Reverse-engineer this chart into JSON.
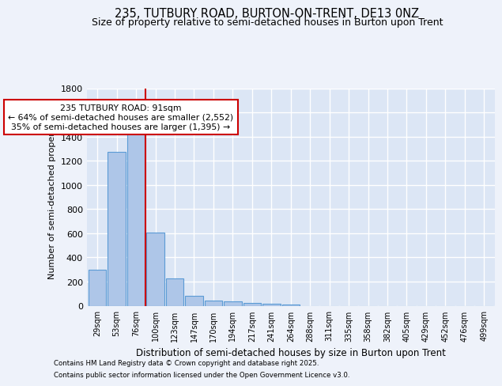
{
  "title": "235, TUTBURY ROAD, BURTON-ON-TRENT, DE13 0NZ",
  "subtitle": "Size of property relative to semi-detached houses in Burton upon Trent",
  "xlabel": "Distribution of semi-detached houses by size in Burton upon Trent",
  "ylabel": "Number of semi-detached properties",
  "footer_line1": "Contains HM Land Registry data © Crown copyright and database right 2025.",
  "footer_line2": "Contains public sector information licensed under the Open Government Licence v3.0.",
  "categories": [
    "29sqm",
    "53sqm",
    "76sqm",
    "100sqm",
    "123sqm",
    "147sqm",
    "170sqm",
    "194sqm",
    "217sqm",
    "241sqm",
    "264sqm",
    "288sqm",
    "311sqm",
    "335sqm",
    "358sqm",
    "382sqm",
    "405sqm",
    "429sqm",
    "452sqm",
    "476sqm",
    "499sqm"
  ],
  "values": [
    300,
    1270,
    1450,
    605,
    225,
    80,
    40,
    35,
    25,
    15,
    10,
    0,
    0,
    0,
    0,
    0,
    0,
    0,
    0,
    0,
    0
  ],
  "bar_color": "#aec6e8",
  "bar_edge_color": "#5b9bd5",
  "highlight_text": "235 TUTBURY ROAD: 91sqm",
  "annotation_line1": "← 64% of semi-detached houses are smaller (2,552)",
  "annotation_line2": "35% of semi-detached houses are larger (1,395) →",
  "annotation_box_color": "#ffffff",
  "annotation_box_edge": "#cc0000",
  "ylim": [
    0,
    1800
  ],
  "yticks": [
    0,
    200,
    400,
    600,
    800,
    1000,
    1200,
    1400,
    1600,
    1800
  ],
  "bg_color": "#eef2fa",
  "plot_bg_color": "#dce6f5",
  "grid_color": "#ffffff",
  "vline_color": "#cc0000",
  "title_fontsize": 10.5,
  "subtitle_fontsize": 9.0
}
